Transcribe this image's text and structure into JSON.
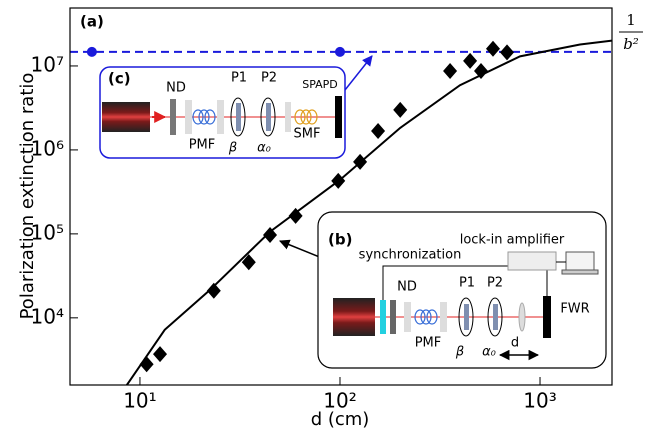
{
  "chart_data": {
    "type": "scatter",
    "xlabel": "d (cm)",
    "ylabel": "Polarization extinction ratio",
    "xscale": "log",
    "yscale": "log",
    "xlim": [
      4.47,
      2290
    ],
    "ylim": [
      1585,
      49000000
    ],
    "xticks": [
      {
        "value": 10,
        "label": "10¹"
      },
      {
        "value": 100,
        "label": "10²"
      },
      {
        "value": 1000,
        "label": "10³"
      }
    ],
    "yticks": [
      {
        "value": 10000,
        "label": "10⁴"
      },
      {
        "value": 100000,
        "label": "10⁵"
      },
      {
        "value": 1000000,
        "label": "10⁶"
      },
      {
        "value": 10000000,
        "label": "10⁷"
      }
    ],
    "series": [
      {
        "type": "line",
        "color": "#000000",
        "x": [
          8.6,
          13.3,
          22.4,
          44.7,
          100,
          200,
          398,
          794,
          1585,
          2290
        ],
        "values": [
          1585,
          7200,
          21500,
          106000,
          440000,
          1830000,
          5900000,
          13000000,
          18000000,
          20000000
        ]
      },
      {
        "type": "scatter",
        "marker": "diamond",
        "color": "#000000",
        "x": [
          10.8,
          12.6,
          23.4,
          35,
          44.7,
          60,
          98,
          126,
          155,
          200,
          355,
          447,
          507,
          582,
          684
        ],
        "values": [
          2800,
          3700,
          21000,
          46000,
          97000,
          164000,
          428000,
          720000,
          1680000,
          3000000,
          8700000,
          11500000,
          8700000,
          16000000,
          14500000
        ]
      },
      {
        "type": "scatter",
        "marker": "circle",
        "color": "#1a1adb",
        "x": [
          5.75,
          100
        ],
        "values": [
          14700000,
          14700000
        ]
      }
    ],
    "hlines": [
      {
        "value": 14700000,
        "color": "#1a1adb",
        "dash": true
      }
    ],
    "panel_label": "(a)",
    "limit_label": {
      "numerator": "1",
      "denominator": "b²"
    },
    "insets": [
      {
        "label": "(c)",
        "texts": [
          "ND",
          "PMF",
          "P1",
          "P2",
          "β",
          "α₀",
          "SMF",
          "SPAPD"
        ]
      },
      {
        "label": "(b)",
        "texts": [
          "synchronization",
          "lock-in amplifier",
          "ND",
          "PMF",
          "P1",
          "P2",
          "β",
          "α₀",
          "d",
          "FWR"
        ]
      }
    ]
  }
}
